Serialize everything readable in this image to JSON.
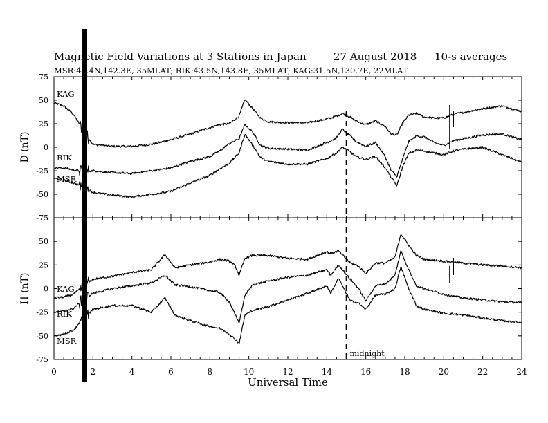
{
  "chart_data": {
    "type": "line",
    "title": "Magnetic Field Variations at 3 Stations in Japan",
    "date": "27  August  2018",
    "averaging": "10-s averages",
    "subtitle": "MSR:44.4N,142.3E, 35MLAT;  RIK:43.5N,143.8E, 35MLAT;  KAG:31.5N,130.7E, 22MLAT",
    "xlabel": "Universal Time",
    "xlim": [
      0,
      24
    ],
    "x_ticks": [
      0,
      2,
      4,
      6,
      8,
      10,
      12,
      14,
      16,
      18,
      20,
      22,
      24
    ],
    "marker_line": {
      "x": 15,
      "label": "midnight"
    },
    "panels": [
      {
        "ylabel": "D (nT)",
        "ylim": [
          -75,
          75
        ],
        "y_ticks": [
          75,
          50,
          25,
          0,
          -25,
          -50,
          -75
        ],
        "x": [
          0,
          0.5,
          1,
          1.5,
          2,
          3,
          4,
          5,
          6,
          7,
          8,
          8.5,
          9,
          9.5,
          9.8,
          10.2,
          10.6,
          11,
          12,
          13,
          14,
          14.5,
          14.8,
          15.2,
          15.5,
          16,
          16.5,
          17,
          17.3,
          17.6,
          17.9,
          18.2,
          18.6,
          19,
          19.5,
          20,
          20.5,
          21,
          22,
          23,
          24
        ],
        "series": [
          {
            "name": "KAG",
            "values": [
              47,
              44,
              35,
              18,
              3,
              1,
              1,
              3,
              8,
              14,
              21,
              24,
              25,
              33,
              51,
              41,
              31,
              27,
              26,
              26,
              30,
              33,
              36,
              32,
              28,
              24,
              28,
              22,
              14,
              13,
              26,
              34,
              36,
              32,
              31,
              31,
              35,
              37,
              41,
              44,
              38
            ]
          },
          {
            "name": "RIK",
            "values": [
              -22,
              -22,
              -24,
              -26,
              -25,
              -27,
              -28,
              -25,
              -22,
              -15,
              -10,
              -4,
              4,
              9,
              24,
              16,
              2,
              -1,
              -2,
              -3,
              5,
              10,
              19,
              12,
              6,
              1,
              5,
              -10,
              -25,
              -31,
              -12,
              6,
              12,
              11,
              5,
              2,
              7,
              9,
              13,
              14,
              8
            ]
          },
          {
            "name": "MSR",
            "values": [
              -33,
              -35,
              -38,
              -42,
              -48,
              -51,
              -53,
              -50,
              -47,
              -38,
              -30,
              -23,
              -17,
              -6,
              14,
              2,
              -11,
              -15,
              -18,
              -18,
              -12,
              -6,
              0,
              -5,
              -10,
              -13,
              -10,
              -22,
              -32,
              -41,
              -20,
              -7,
              -3,
              -4,
              -6,
              -8,
              -4,
              -2,
              0,
              -8,
              -16
            ]
          }
        ]
      },
      {
        "ylabel": "H (nT)",
        "ylim": [
          -75,
          75
        ],
        "y_ticks": [
          75,
          50,
          25,
          0,
          -25,
          -50,
          -75
        ],
        "x": [
          0,
          0.5,
          1,
          1.5,
          2,
          3,
          4,
          5,
          5.7,
          6.2,
          7,
          8,
          8.5,
          9,
          9.3,
          9.5,
          9.8,
          10.2,
          11,
          12,
          13,
          14,
          14.2,
          14.6,
          15.2,
          15.6,
          16,
          16.5,
          17,
          17.5,
          17.8,
          18.2,
          18.6,
          19,
          20,
          21,
          22,
          23,
          24
        ],
        "series": [
          {
            "name": "KAG",
            "values": [
              -10,
              -9,
              -6,
              2,
              10,
              13,
              17,
              20,
              36,
              22,
              25,
              28,
              31,
              29,
              24,
              14,
              32,
              35,
              35,
              32,
              31,
              39,
              37,
              40,
              27,
              24,
              16,
              27,
              27,
              33,
              58,
              46,
              35,
              31,
              29,
              27,
              25,
              24,
              22
            ]
          },
          {
            "name": "RIK",
            "values": [
              -25,
              -24,
              -21,
              -12,
              -5,
              0,
              3,
              6,
              14,
              4,
              2,
              -2,
              -4,
              -14,
              -28,
              -36,
              -7,
              4,
              8,
              12,
              14,
              20,
              14,
              25,
              10,
              1,
              -13,
              3,
              5,
              14,
              40,
              20,
              3,
              0,
              -6,
              -10,
              -12,
              -14,
              -15
            ]
          },
          {
            "name": "MSR",
            "values": [
              -50,
              -48,
              -44,
              -33,
              -22,
              -18,
              -18,
              -25,
              -10,
              -28,
              -34,
              -40,
              -42,
              -48,
              -54,
              -58,
              -28,
              -23,
              -19,
              -12,
              -5,
              3,
              -5,
              11,
              -13,
              -15,
              -22,
              -7,
              -6,
              0,
              23,
              0,
              -18,
              -22,
              -26,
              -28,
              -31,
              -34,
              -36
            ]
          }
        ]
      }
    ]
  }
}
